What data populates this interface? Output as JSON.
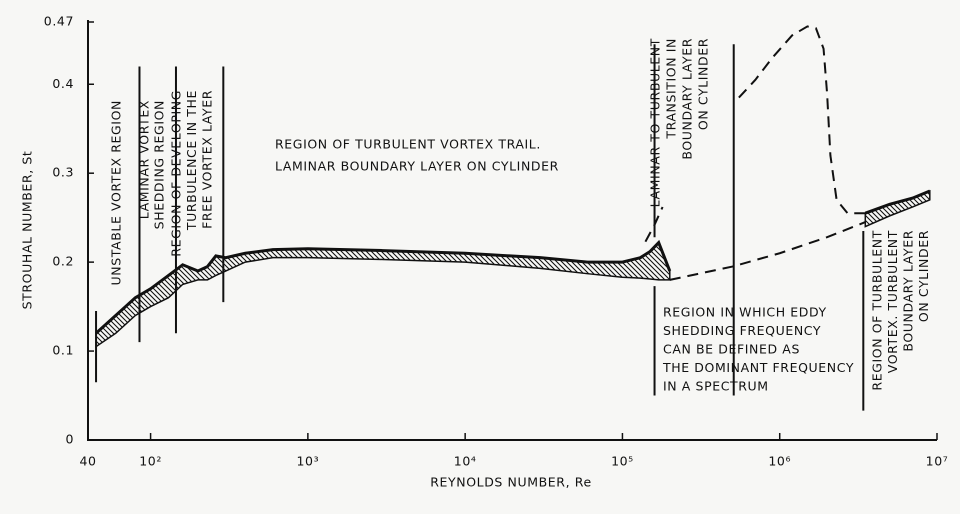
{
  "chart_data": {
    "type": "band",
    "x_label": "REYNOLDS NUMBER, Re",
    "y_label": "STROUHAL NUMBER, St",
    "xscale": "log",
    "xlim": [
      40,
      10000000
    ],
    "ylim": [
      0,
      0.47
    ],
    "xticks": [
      40,
      {
        "value": 100,
        "label": "10²"
      },
      {
        "value": 1000,
        "label": "10³"
      },
      {
        "value": 10000,
        "label": "10⁴"
      },
      {
        "value": 100000,
        "label": "10⁵"
      },
      {
        "value": 1000000,
        "label": "10⁶"
      },
      {
        "value": 10000000,
        "label": "10⁷"
      }
    ],
    "yticks": [
      0,
      0.1,
      0.2,
      0.3,
      0.4,
      0.47
    ],
    "color": "#111111",
    "bands": [
      {
        "x": [
          45,
          60,
          80,
          100,
          130,
          160,
          200,
          230,
          260,
          300,
          400,
          600,
          1000,
          3000,
          10000,
          30000,
          60000,
          100000,
          130000,
          150000,
          170000,
          200000
        ],
        "upper": [
          0.12,
          0.14,
          0.16,
          0.17,
          0.185,
          0.197,
          0.19,
          0.195,
          0.207,
          0.205,
          0.21,
          0.214,
          0.215,
          0.213,
          0.21,
          0.205,
          0.2,
          0.2,
          0.205,
          0.212,
          0.222,
          0.19
        ],
        "lower": [
          0.105,
          0.12,
          0.14,
          0.15,
          0.16,
          0.175,
          0.18,
          0.18,
          0.185,
          0.19,
          0.2,
          0.205,
          0.205,
          0.203,
          0.2,
          0.193,
          0.187,
          0.183,
          0.182,
          0.181,
          0.18,
          0.18
        ]
      },
      {
        "x": [
          3500000,
          5000000,
          7000000,
          9000000
        ],
        "upper": [
          0.255,
          0.265,
          0.272,
          0.28
        ],
        "lower": [
          0.24,
          0.252,
          0.262,
          0.27
        ]
      }
    ],
    "dashed_lines": [
      {
        "x": [
          140000,
          160000,
          180000
        ],
        "y": [
          0.223,
          0.242,
          0.262
        ]
      },
      {
        "x": [
          200000,
          500000,
          1000000,
          2000000,
          3500000
        ],
        "y": [
          0.18,
          0.195,
          0.21,
          0.228,
          0.245
        ]
      },
      {
        "x": [
          550000,
          700000,
          900000,
          1200000,
          1500000,
          1700000,
          1900000,
          2000000,
          2100000,
          2300000,
          2700000,
          3500000
        ],
        "y": [
          0.385,
          0.405,
          0.43,
          0.455,
          0.465,
          0.463,
          0.44,
          0.39,
          0.32,
          0.27,
          0.255,
          0.255
        ]
      }
    ],
    "boundaries": [
      {
        "x": 45,
        "y": [
          0.065,
          0.145
        ]
      },
      {
        "x": 85,
        "y": [
          0.11,
          0.42
        ]
      },
      {
        "x": 145,
        "y": [
          0.12,
          0.42
        ]
      },
      {
        "x": 290,
        "y": [
          0.155,
          0.42
        ]
      },
      {
        "x": 160000,
        "y": [
          0.228,
          0.445
        ]
      },
      {
        "x": 160000,
        "y": [
          0.05,
          0.173
        ]
      },
      {
        "x": 510000,
        "y": [
          0.05,
          0.445
        ]
      },
      {
        "x": 3400000,
        "y": [
          0.033,
          0.235
        ]
      }
    ],
    "annotations": [
      {
        "lines": [
          "UNSTABLE VORTEX REGION"
        ],
        "rotated": true
      },
      {
        "lines": [
          "LAMINAR VORTEX",
          "SHEDDING REGION"
        ],
        "rotated": true
      },
      {
        "lines": [
          "REGION OF DEVELOPING",
          "TURBULENCE IN THE",
          "FREE VORTEX LAYER"
        ],
        "rotated": true
      },
      {
        "lines": [
          "REGION OF TURBULENT VORTEX TRAIL.",
          "LAMINAR BOUNDARY LAYER ON CYLINDER"
        ],
        "rotated": false
      },
      {
        "lines": [
          "LAMINAR TO TURBULENT",
          "TRANSITION IN",
          "BOUNDARY LAYER",
          "ON CYLINDER"
        ],
        "rotated": true
      },
      {
        "lines": [
          "REGION IN WHICH EDDY",
          "SHEDDING FREQUENCY",
          "CAN BE DEFINED AS",
          "THE DOMINANT FREQUENCY",
          "IN A SPECTRUM"
        ],
        "rotated": false
      },
      {
        "lines": [
          "REGION OF TURBULENT",
          "VORTEX. TURBULENT",
          "BOUNDARY LAYER",
          "ON CYLINDER"
        ],
        "rotated": true
      }
    ]
  }
}
